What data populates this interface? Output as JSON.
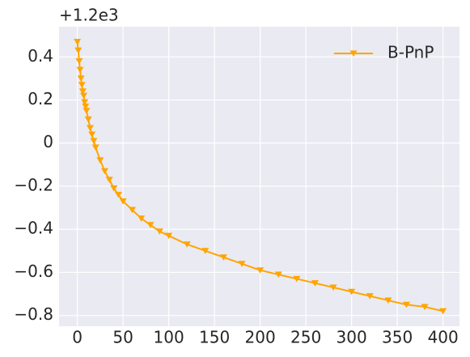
{
  "chart_data": {
    "type": "line",
    "y_offset_label": "+1.2e3",
    "x": [
      0,
      1,
      2,
      3,
      4,
      5,
      6,
      7,
      8,
      9,
      10,
      12,
      14,
      16,
      18,
      20,
      25,
      30,
      35,
      40,
      45,
      50,
      60,
      70,
      80,
      90,
      100,
      120,
      140,
      160,
      180,
      200,
      220,
      240,
      260,
      280,
      300,
      320,
      340,
      360,
      380,
      400
    ],
    "series": [
      {
        "name": "B-PnP",
        "color": "#ffa500",
        "values": [
          0.47,
          0.43,
          0.38,
          0.34,
          0.3,
          0.27,
          0.24,
          0.22,
          0.19,
          0.17,
          0.15,
          0.11,
          0.07,
          0.04,
          0.01,
          -0.02,
          -0.08,
          -0.13,
          -0.17,
          -0.21,
          -0.24,
          -0.27,
          -0.31,
          -0.35,
          -0.38,
          -0.41,
          -0.43,
          -0.47,
          -0.5,
          -0.53,
          -0.56,
          -0.59,
          -0.61,
          -0.63,
          -0.65,
          -0.67,
          -0.69,
          -0.71,
          -0.73,
          -0.75,
          -0.76,
          -0.78
        ]
      }
    ],
    "xlim": [
      -20,
      418
    ],
    "ylim": [
      -0.85,
      0.54
    ],
    "xticks": [
      0,
      50,
      100,
      150,
      200,
      250,
      300,
      350,
      400
    ],
    "yticks": [
      {
        "value": -0.8,
        "label": "−0.8"
      },
      {
        "value": -0.6,
        "label": "−0.6"
      },
      {
        "value": -0.4,
        "label": "−0.4"
      },
      {
        "value": -0.2,
        "label": "−0.2"
      },
      0.0,
      0.2,
      0.4
    ],
    "grid": true,
    "legend": "upper right"
  }
}
